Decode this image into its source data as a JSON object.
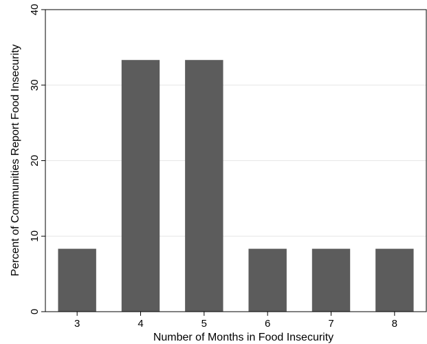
{
  "chart_data": {
    "type": "bar",
    "categories": [
      "3",
      "4",
      "5",
      "6",
      "7",
      "8"
    ],
    "values": [
      8.33,
      33.33,
      33.33,
      8.33,
      8.33,
      8.33
    ],
    "title": "",
    "xlabel": "Number of Months in Food Insecurity",
    "ylabel": "Percent of Communities Report Food Insecurity",
    "ylim": [
      0,
      40
    ],
    "yticks": [
      "0",
      "10",
      "20",
      "30",
      "40"
    ],
    "grid": true,
    "legend": "none",
    "bar_color": "#5c5c5c",
    "grid_color": "#e6e6e6"
  }
}
